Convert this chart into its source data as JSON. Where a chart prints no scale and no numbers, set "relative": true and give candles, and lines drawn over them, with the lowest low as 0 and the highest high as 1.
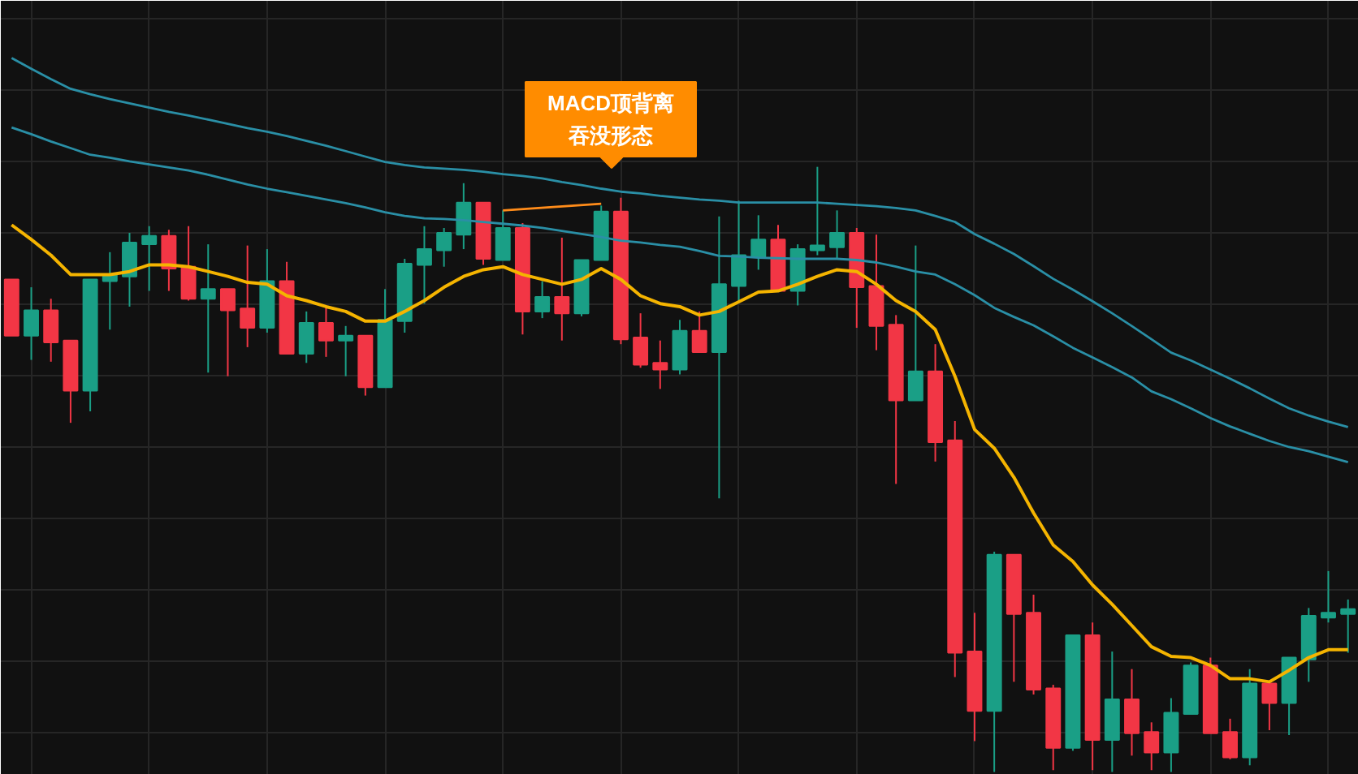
{
  "chart_data": {
    "type": "candlestick",
    "relative": true,
    "grid": true,
    "categories": [
      null,
      null,
      null,
      null,
      null,
      null,
      null,
      null,
      null,
      null,
      null,
      null,
      null,
      null,
      null,
      null,
      null,
      null,
      null,
      null,
      null,
      null,
      null,
      null,
      null,
      null,
      null,
      null,
      null,
      null,
      null,
      null,
      null,
      null,
      null,
      null,
      null,
      null,
      null,
      null,
      null,
      null,
      null,
      null,
      null,
      null,
      null,
      null,
      null,
      null,
      null,
      null,
      null,
      null,
      null,
      null,
      null,
      null,
      null,
      null,
      null,
      null,
      null,
      null,
      null,
      null,
      null,
      null,
      null
    ],
    "ohlc": [
      [
        0.814,
        0.814,
        0.721,
        0.721
      ],
      [
        0.721,
        0.801,
        0.681,
        0.763
      ],
      [
        0.763,
        0.782,
        0.678,
        0.71
      ],
      [
        0.713,
        0.713,
        0.577,
        0.63
      ],
      [
        0.63,
        0.814,
        0.596,
        0.814
      ],
      [
        0.811,
        0.859,
        0.731,
        0.822
      ],
      [
        0.819,
        0.891,
        0.769,
        0.875
      ],
      [
        0.872,
        0.902,
        0.795,
        0.886
      ],
      [
        0.886,
        0.896,
        0.795,
        0.832
      ],
      [
        0.835,
        0.902,
        0.779,
        0.782
      ],
      [
        0.782,
        0.872,
        0.66,
        0.798
      ],
      [
        0.798,
        0.798,
        0.654,
        0.763
      ],
      [
        0.766,
        0.87,
        0.702,
        0.734
      ],
      [
        0.734,
        0.864,
        0.726,
        0.811
      ],
      [
        0.811,
        0.843,
        0.691,
        0.691
      ],
      [
        0.691,
        0.761,
        0.676,
        0.742
      ],
      [
        0.742,
        0.771,
        0.686,
        0.713
      ],
      [
        0.713,
        0.737,
        0.654,
        0.721
      ],
      [
        0.721,
        0.721,
        0.622,
        0.636
      ],
      [
        0.636,
        0.798,
        0.636,
        0.747
      ],
      [
        0.745,
        0.848,
        0.726,
        0.84
      ],
      [
        0.838,
        0.902,
        0.774,
        0.864
      ],
      [
        0.862,
        0.899,
        0.835,
        0.891
      ],
      [
        0.888,
        0.973,
        0.864,
        0.941
      ],
      [
        0.941,
        0.941,
        0.838,
        0.848
      ],
      [
        0.846,
        0.928,
        0.846,
        0.899
      ],
      [
        0.899,
        0.907,
        0.723,
        0.761
      ],
      [
        0.761,
        0.811,
        0.75,
        0.785
      ],
      [
        0.785,
        0.883,
        0.713,
        0.758
      ],
      [
        0.758,
        0.846,
        0.753,
        0.846
      ],
      [
        0.846,
        0.936,
        0.846,
        0.926
      ],
      [
        0.926,
        0.949,
        0.707,
        0.715
      ],
      [
        0.718,
        0.758,
        0.668,
        0.673
      ],
      [
        0.676,
        0.713,
        0.633,
        0.665
      ],
      [
        0.665,
        0.747,
        0.657,
        0.729
      ],
      [
        0.729,
        0.761,
        0.694,
        0.694
      ],
      [
        0.694,
        0.918,
        0.452,
        0.806
      ],
      [
        0.803,
        0.944,
        0.779,
        0.854
      ],
      [
        0.851,
        0.92,
        0.83,
        0.88
      ],
      [
        0.88,
        0.904,
        0.795,
        0.795
      ],
      [
        0.795,
        0.872,
        0.771,
        0.864
      ],
      [
        0.862,
        1.0,
        0.854,
        0.87
      ],
      [
        0.867,
        0.928,
        0.848,
        0.891
      ],
      [
        0.891,
        0.899,
        0.734,
        0.801
      ],
      [
        0.803,
        0.888,
        0.697,
        0.737
      ],
      [
        0.739,
        0.755,
        0.476,
        0.614
      ],
      [
        0.614,
        0.87,
        0.614,
        0.662
      ],
      [
        0.662,
        0.707,
        0.513,
        0.545
      ],
      [
        0.548,
        0.58,
        0.157,
        0.197
      ],
      [
        0.199,
        0.263,
        0.051,
        0.101
      ],
      [
        0.101,
        0.364,
        0.0,
        0.359
      ],
      [
        0.359,
        0.359,
        0.149,
        0.261
      ],
      [
        0.263,
        0.293,
        0.128,
        0.136
      ],
      [
        0.138,
        0.144,
        0.003,
        0.04
      ],
      [
        0.04,
        0.226,
        0.035,
        0.226
      ],
      [
        0.226,
        0.247,
        0.003,
        0.053
      ],
      [
        0.053,
        0.199,
        0.0,
        0.12
      ],
      [
        0.12,
        0.17,
        0.027,
        0.064
      ],
      [
        0.066,
        0.082,
        0.003,
        0.032
      ],
      [
        0.032,
        0.122,
        0.0,
        0.098
      ],
      [
        0.096,
        0.181,
        0.096,
        0.176
      ],
      [
        0.176,
        0.189,
        0.064,
        0.064
      ],
      [
        0.066,
        0.088,
        0.021,
        0.024
      ],
      [
        0.024,
        0.17,
        0.011,
        0.146
      ],
      [
        0.146,
        0.146,
        0.069,
        0.114
      ],
      [
        0.114,
        0.189,
        0.061,
        0.189
      ],
      [
        0.186,
        0.271,
        0.149,
        0.258
      ],
      [
        0.255,
        0.332,
        0.247,
        0.263
      ],
      [
        0.261,
        0.285,
        0.197,
        0.269
      ]
    ],
    "colors": [
      "#f23645",
      "#1a9f86",
      "#f23645",
      "#f23645",
      "#1a9f86",
      "#1a9f86",
      "#1a9f86",
      "#1a9f86",
      "#f23645",
      "#f23645",
      "#1a9f86",
      "#f23645",
      "#f23645",
      "#1a9f86",
      "#f23645",
      "#1a9f86",
      "#f23645",
      "#1a9f86",
      "#f23645",
      "#1a9f86",
      "#1a9f86",
      "#1a9f86",
      "#1a9f86",
      "#1a9f86",
      "#f23645",
      "#1a9f86",
      "#f23645",
      "#1a9f86",
      "#f23645",
      "#1a9f86",
      "#1a9f86",
      "#f23645",
      "#f23645",
      "#f23645",
      "#1a9f86",
      "#f23645",
      "#1a9f86",
      "#1a9f86",
      "#1a9f86",
      "#f23645",
      "#1a9f86",
      "#1a9f86",
      "#1a9f86",
      "#f23645",
      "#f23645",
      "#f23645",
      "#1a9f86",
      "#f23645",
      "#f23645",
      "#f23645",
      "#1a9f86",
      "#f23645",
      "#f23645",
      "#f23645",
      "#1a9f86",
      "#f23645",
      "#1a9f86",
      "#f23645",
      "#f23645",
      "#1a9f86",
      "#1a9f86",
      "#f23645",
      "#f23645",
      "#1a9f86",
      "#f23645",
      "#1a9f86",
      "#1a9f86",
      "#1a9f86",
      "#1a9f86"
    ],
    "series": [
      {
        "type": "line",
        "color": "#f5b400",
        "values": [
          0.904,
          0.88,
          0.854,
          0.822,
          0.822,
          0.822,
          0.827,
          0.838,
          0.838,
          0.835,
          0.827,
          0.819,
          0.809,
          0.806,
          0.787,
          0.779,
          0.769,
          0.761,
          0.745,
          0.745,
          0.761,
          0.779,
          0.801,
          0.819,
          0.83,
          0.835,
          0.822,
          0.814,
          0.806,
          0.814,
          0.832,
          0.814,
          0.787,
          0.774,
          0.769,
          0.755,
          0.761,
          0.777,
          0.793,
          0.795,
          0.806,
          0.819,
          0.83,
          0.827,
          0.806,
          0.779,
          0.761,
          0.731,
          0.654,
          0.566,
          0.535,
          0.487,
          0.428,
          0.375,
          0.348,
          0.309,
          0.277,
          0.242,
          0.207,
          0.191,
          0.189,
          0.176,
          0.154,
          0.154,
          0.149,
          0.168,
          0.189,
          0.202,
          0.202
        ]
      },
      {
        "type": "line",
        "color": "#2a8fa6",
        "values": [
          1.18,
          1.162,
          1.145,
          1.129,
          1.12,
          1.112,
          1.105,
          1.098,
          1.091,
          1.085,
          1.078,
          1.071,
          1.064,
          1.058,
          1.051,
          1.043,
          1.035,
          1.026,
          1.017,
          1.008,
          1.003,
          0.999,
          0.997,
          0.995,
          0.992,
          0.988,
          0.985,
          0.981,
          0.975,
          0.97,
          0.964,
          0.959,
          0.956,
          0.952,
          0.949,
          0.946,
          0.944,
          0.941,
          0.941,
          0.941,
          0.941,
          0.941,
          0.939,
          0.937,
          0.935,
          0.932,
          0.928,
          0.919,
          0.909,
          0.889,
          0.873,
          0.856,
          0.836,
          0.815,
          0.797,
          0.778,
          0.758,
          0.737,
          0.715,
          0.693,
          0.68,
          0.665,
          0.65,
          0.634,
          0.617,
          0.601,
          0.589,
          0.579,
          0.57
        ]
      },
      {
        "type": "line",
        "color": "#2a8fa6",
        "values": [
          1.065,
          1.054,
          1.042,
          1.031,
          1.02,
          1.015,
          1.009,
          1.004,
          0.999,
          0.994,
          0.987,
          0.979,
          0.971,
          0.964,
          0.958,
          0.952,
          0.946,
          0.94,
          0.933,
          0.925,
          0.919,
          0.915,
          0.914,
          0.912,
          0.909,
          0.906,
          0.903,
          0.899,
          0.894,
          0.889,
          0.884,
          0.878,
          0.875,
          0.871,
          0.868,
          0.861,
          0.853,
          0.852,
          0.85,
          0.849,
          0.848,
          0.848,
          0.848,
          0.846,
          0.842,
          0.835,
          0.827,
          0.822,
          0.806,
          0.788,
          0.767,
          0.752,
          0.738,
          0.72,
          0.701,
          0.685,
          0.669,
          0.652,
          0.629,
          0.616,
          0.601,
          0.585,
          0.571,
          0.559,
          0.547,
          0.537,
          0.53,
          0.521,
          0.512
        ]
      },
      {
        "type": "line",
        "color": "#ff8c1a",
        "values": [
          null,
          null,
          null,
          null,
          null,
          null,
          null,
          null,
          null,
          null,
          null,
          null,
          null,
          null,
          null,
          null,
          null,
          null,
          null,
          null,
          null,
          null,
          null,
          null,
          null,
          0.928,
          null,
          null,
          null,
          null,
          0.939,
          null,
          null,
          null,
          null,
          null,
          null,
          null,
          null,
          null,
          null,
          null,
          null,
          null,
          null,
          null,
          null,
          null,
          null,
          null,
          null,
          null,
          null,
          null,
          null,
          null,
          null,
          null,
          null,
          null,
          null,
          null,
          null,
          null,
          null,
          null,
          null,
          null,
          null
        ]
      }
    ],
    "annotations": [
      "MACD顶背离",
      "吞没形态"
    ]
  }
}
